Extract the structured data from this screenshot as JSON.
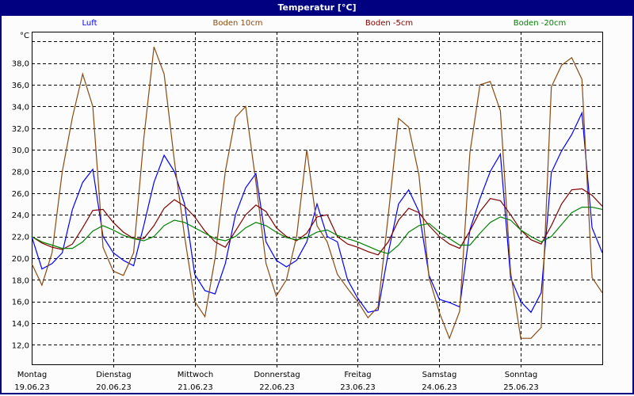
{
  "title": "Temperatur [°C]",
  "chart_data": {
    "type": "line",
    "title": "Temperatur [°C]",
    "ylabel": "°C",
    "ylim": [
      10.2,
      40.9
    ],
    "xlim_hours": [
      0,
      168
    ],
    "grid": true,
    "legend_position": "top",
    "y_ticks": [
      "12,0",
      "14,0",
      "16,0",
      "18,0",
      "20,0",
      "22,0",
      "24,0",
      "26,0",
      "28,0",
      "30,0",
      "32,0",
      "34,0",
      "36,0",
      "38,0"
    ],
    "days": [
      {
        "weekday": "Montag",
        "date": "19.06.23"
      },
      {
        "weekday": "Dienstag",
        "date": "20.06.23"
      },
      {
        "weekday": "Mittwoch",
        "date": "21.06.23"
      },
      {
        "weekday": "Donnerstag",
        "date": "22.06.23"
      },
      {
        "weekday": "Freitag",
        "date": "23.06.23"
      },
      {
        "weekday": "Samstag",
        "date": "24.06.23"
      },
      {
        "weekday": "Sonntag",
        "date": "25.06.23"
      }
    ],
    "x_step_hours": 3,
    "series": [
      {
        "name": "Luft",
        "color": "#0000ff",
        "values": [
          22,
          19,
          19.5,
          20.5,
          24.5,
          27,
          28.2,
          22,
          20.5,
          19.8,
          19.3,
          23,
          27,
          29.5,
          28,
          25,
          18.5,
          17,
          16.7,
          19.5,
          24,
          26.5,
          27.8,
          21.5,
          19.8,
          19.2,
          19.8,
          21.5,
          25,
          22,
          21.5,
          18,
          16.3,
          15,
          15.2,
          20.5,
          25,
          26.3,
          24.3,
          18.4,
          16.2,
          15.9,
          15.5,
          22.6,
          25.5,
          28,
          29.6,
          18.2,
          16,
          15,
          16.8,
          27.9,
          29.9,
          31.4,
          33.4,
          22.8,
          20.5
        ]
      },
      {
        "name": "Boden 10cm",
        "color": "#8b4a10",
        "values": [
          19.5,
          17.5,
          20.5,
          28,
          33,
          37,
          34,
          21,
          18.8,
          18.4,
          20.5,
          31,
          39.5,
          37,
          29,
          22,
          16,
          14.6,
          20,
          28,
          33,
          34,
          27,
          19.5,
          16.5,
          18,
          22,
          30,
          23,
          21.5,
          18.5,
          17.2,
          16,
          14.5,
          15.5,
          24,
          32.9,
          32.1,
          27.7,
          18.2,
          15,
          12.6,
          15.1,
          29.7,
          36,
          36.3,
          33.6,
          18.7,
          12.6,
          12.6,
          13.6,
          35.8,
          37.8,
          38.5,
          36.5,
          18.2,
          16.8
        ]
      },
      {
        "name": "Boden -5cm",
        "color": "#800000",
        "values": [
          22,
          21.4,
          21,
          20.8,
          21.3,
          22.8,
          24.4,
          24.5,
          23.3,
          22.4,
          21.8,
          21.8,
          23,
          24.6,
          25.4,
          24.8,
          23.8,
          22.5,
          21.5,
          21,
          22.5,
          24,
          24.9,
          24.3,
          22.8,
          22,
          21.6,
          22.3,
          23.8,
          24,
          22,
          21.3,
          21,
          20.6,
          20.3,
          21.5,
          23.5,
          24.6,
          24.2,
          23,
          22,
          21.3,
          20.9,
          22.5,
          24.3,
          25.5,
          25.3,
          24,
          22.6,
          21.7,
          21.3,
          23,
          25,
          26.3,
          26.4,
          25.8,
          24.8
        ]
      },
      {
        "name": "Boden -20cm",
        "color": "#008000",
        "values": [
          22,
          21.5,
          21.2,
          20.9,
          20.9,
          21.5,
          22.5,
          23,
          22.6,
          22.1,
          21.8,
          21.6,
          22,
          23,
          23.5,
          23.3,
          22.8,
          22.3,
          21.8,
          21.6,
          22,
          22.8,
          23.3,
          23,
          22.4,
          21.9,
          21.7,
          21.9,
          22.4,
          22.6,
          22.1,
          21.8,
          21.5,
          21.1,
          20.7,
          20.4,
          21.2,
          22.4,
          23,
          23.2,
          22.4,
          21.8,
          21.2,
          21.2,
          22.3,
          23.3,
          23.8,
          23.5,
          22.6,
          22,
          21.5,
          22,
          23.1,
          24.2,
          24.7,
          24.7,
          24.5
        ]
      }
    ]
  }
}
